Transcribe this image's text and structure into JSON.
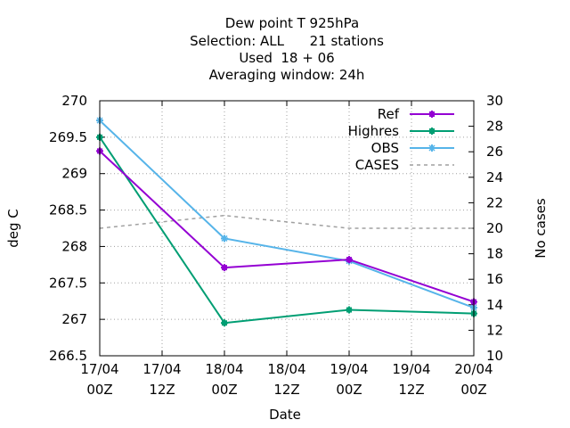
{
  "chart_data": {
    "type": "line",
    "title": [
      "Dew point T 925hPa",
      "Selection: ALL      21 stations",
      "Used  18 + 06",
      "Averaging window: 24h"
    ],
    "xlabel": "Date",
    "ylabel": "deg C",
    "y2label": "No cases",
    "x_ticks": [
      {
        "line1": "17/04",
        "line2": "00Z"
      },
      {
        "line1": "17/04",
        "line2": "12Z"
      },
      {
        "line1": "18/04",
        "line2": "00Z"
      },
      {
        "line1": "18/04",
        "line2": "12Z"
      },
      {
        "line1": "19/04",
        "line2": "00Z"
      },
      {
        "line1": "19/04",
        "line2": "12Z"
      },
      {
        "line1": "20/04",
        "line2": "00Z"
      }
    ],
    "ylim": [
      266.5,
      270
    ],
    "y_ticks": [
      "266.5",
      "267",
      "267.5",
      "268",
      "268.5",
      "269",
      "269.5",
      "270"
    ],
    "y2lim": [
      10,
      30
    ],
    "y2_ticks": [
      "10",
      "12",
      "14",
      "16",
      "18",
      "20",
      "22",
      "24",
      "26",
      "28",
      "30"
    ],
    "x": [
      0,
      2,
      4,
      6
    ],
    "legend_position": "top-right",
    "series": [
      {
        "name": "Ref",
        "color": "#9400d3",
        "axis": "y",
        "marker": "plus-square",
        "dashed": false,
        "values": [
          269.31,
          267.71,
          267.82,
          267.24
        ]
      },
      {
        "name": "Highres",
        "color": "#009e73",
        "axis": "y",
        "marker": "plus-square",
        "dashed": false,
        "values": [
          269.5,
          266.95,
          267.13,
          267.08
        ]
      },
      {
        "name": "OBS",
        "color": "#56b4e9",
        "axis": "y",
        "marker": "star",
        "dashed": false,
        "values": [
          269.73,
          268.11,
          267.8,
          267.16
        ]
      },
      {
        "name": "CASES",
        "color": "#a0a0a0",
        "axis": "y2",
        "marker": "none",
        "dashed": true,
        "values": [
          20,
          21,
          20,
          20
        ]
      }
    ]
  }
}
